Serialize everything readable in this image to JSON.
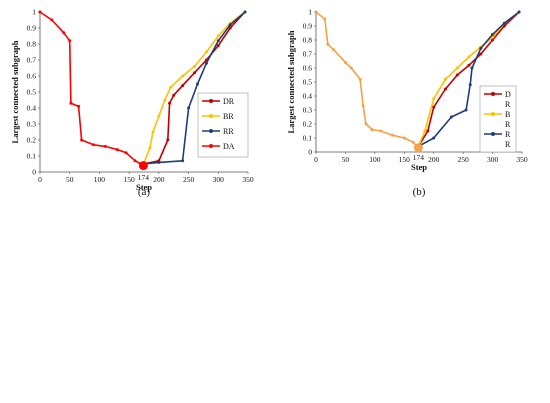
{
  "chart_data": [
    {
      "type": "line",
      "panel_label": "(a)",
      "xlabel": "Step",
      "ylabel": "Largest connected subgraph",
      "xlim": [
        0,
        350
      ],
      "ylim": [
        0,
        1
      ],
      "xticks": [
        0,
        50,
        100,
        150,
        200,
        250,
        300,
        350
      ],
      "yticks": [
        0,
        0.1,
        0.2,
        0.3,
        0.4,
        0.5,
        0.6,
        0.7,
        0.8,
        0.9,
        1
      ],
      "extra_xtick": "174",
      "marker_point": {
        "x": 174,
        "y": 0.04
      },
      "legend_position": "right",
      "series": [
        {
          "name": "DR",
          "color": "#c00000",
          "x": [
            174,
            200,
            215,
            218,
            225,
            240,
            260,
            280,
            300,
            320,
            345
          ],
          "y": [
            0.05,
            0.07,
            0.2,
            0.43,
            0.48,
            0.54,
            0.62,
            0.7,
            0.79,
            0.9,
            1.0
          ]
        },
        {
          "name": "BR",
          "color": "#ffc000",
          "x": [
            174,
            185,
            190,
            200,
            210,
            220,
            240,
            260,
            280,
            300,
            320,
            345
          ],
          "y": [
            0.05,
            0.15,
            0.25,
            0.35,
            0.45,
            0.53,
            0.6,
            0.66,
            0.75,
            0.85,
            0.93,
            1.0
          ]
        },
        {
          "name": "RR",
          "color": "#1f3d7a",
          "x": [
            174,
            200,
            240,
            250,
            265,
            280,
            300,
            320,
            345
          ],
          "y": [
            0.05,
            0.06,
            0.07,
            0.4,
            0.55,
            0.68,
            0.82,
            0.92,
            1.0
          ]
        },
        {
          "name": "DA",
          "color": "#ff0000",
          "x": [
            0,
            20,
            40,
            50,
            52,
            65,
            70,
            90,
            110,
            130,
            145,
            160,
            170,
            174
          ],
          "y": [
            1.0,
            0.95,
            0.87,
            0.82,
            0.43,
            0.41,
            0.2,
            0.17,
            0.16,
            0.14,
            0.12,
            0.07,
            0.05,
            0.04
          ]
        }
      ]
    },
    {
      "type": "line",
      "panel_label": "(b)",
      "xlabel": "Step",
      "ylabel": "Largest connected subgraph",
      "xlim": [
        0,
        350
      ],
      "ylim": [
        0,
        1
      ],
      "xticks": [
        0,
        50,
        100,
        150,
        200,
        250,
        300,
        350
      ],
      "yticks": [
        0,
        0.1,
        0.2,
        0.3,
        0.4,
        0.5,
        0.6,
        0.7,
        0.8,
        0.9,
        1
      ],
      "extra_xtick": "174",
      "marker_point": {
        "x": 174,
        "y": 0.03
      },
      "legend_position": "right",
      "legend_entries": [
        {
          "label": "D",
          "color": "#c00000"
        },
        {
          "label": "R",
          "color": ""
        },
        {
          "label": "B",
          "color": "#ffc000"
        },
        {
          "label": "R",
          "color": ""
        },
        {
          "label": "R",
          "color": "#1f3d7a"
        },
        {
          "label": "R",
          "color": ""
        }
      ],
      "series": [
        {
          "color": "#c00000",
          "x": [
            174,
            190,
            200,
            220,
            240,
            260,
            280,
            300,
            320,
            345
          ],
          "y": [
            0.04,
            0.15,
            0.32,
            0.45,
            0.55,
            0.62,
            0.7,
            0.8,
            0.9,
            1.0
          ]
        },
        {
          "color": "#ffc000",
          "x": [
            174,
            185,
            200,
            220,
            240,
            260,
            280,
            300,
            320,
            345
          ],
          "y": [
            0.04,
            0.15,
            0.38,
            0.52,
            0.6,
            0.68,
            0.75,
            0.82,
            0.92,
            1.0
          ]
        },
        {
          "color": "#1f3d7a",
          "x": [
            174,
            200,
            230,
            255,
            262,
            265,
            280,
            300,
            320,
            345
          ],
          "y": [
            0.04,
            0.1,
            0.25,
            0.3,
            0.48,
            0.6,
            0.74,
            0.84,
            0.92,
            1.0
          ]
        },
        {
          "color": "#f4a24a",
          "x": [
            0,
            15,
            20,
            30,
            50,
            60,
            75,
            80,
            85,
            95,
            110,
            130,
            150,
            165,
            174
          ],
          "y": [
            1.0,
            0.95,
            0.77,
            0.73,
            0.64,
            0.6,
            0.52,
            0.33,
            0.2,
            0.16,
            0.15,
            0.12,
            0.1,
            0.07,
            0.03
          ]
        }
      ]
    }
  ]
}
